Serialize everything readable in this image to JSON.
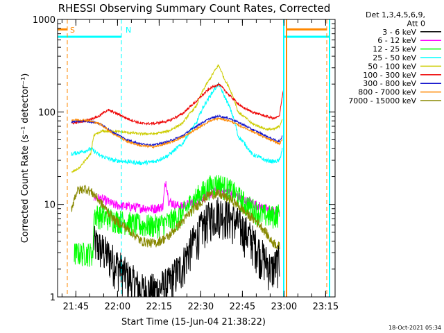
{
  "chart_data": {
    "type": "line",
    "title": "RHESSI Observing Summary Count Rates, Corrected",
    "xlabel": "Start Time (15-Jun-04 21:38:22)",
    "ylabel": "Corrected Count Rate (s⁻¹ detector⁻¹)",
    "yscale": "log",
    "ylim": [
      1,
      1000
    ],
    "xlim_minutes": [
      0,
      100
    ],
    "x_unit": "minutes after 21:38:22",
    "xticks": [
      {
        "minutes": 6.6,
        "label": "21:45"
      },
      {
        "minutes": 21.6,
        "label": "22:00"
      },
      {
        "minutes": 36.6,
        "label": "22:15"
      },
      {
        "minutes": 51.6,
        "label": "22:30"
      },
      {
        "minutes": 66.6,
        "label": "22:45"
      },
      {
        "minutes": 81.6,
        "label": "23:00"
      },
      {
        "minutes": 96.6,
        "label": "23:15"
      }
    ],
    "yticks": [
      {
        "value": 1,
        "label": "1"
      },
      {
        "value": 10,
        "label": "10"
      },
      {
        "value": 100,
        "label": "100"
      },
      {
        "value": 1000,
        "label": "1000"
      }
    ],
    "legend_header": [
      "Det 1,3,4,5,6,9,",
      "Att 0"
    ],
    "legend_position": "right",
    "series": [
      {
        "name": "3 - 6 keV",
        "color": "#000000",
        "start": 13,
        "end": 80,
        "noise": 0.5,
        "x": [
          13,
          15,
          20,
          25,
          30,
          35,
          40,
          45,
          50,
          55,
          58,
          63,
          68,
          73,
          77,
          80
        ],
        "values": [
          4.0,
          3.5,
          2.5,
          1.7,
          1.2,
          1.2,
          1.4,
          2.2,
          4.5,
          7.5,
          8.5,
          7.0,
          5.0,
          3.0,
          2.0,
          2.5
        ]
      },
      {
        "name": "6 - 12 keV",
        "color": "#ff00ff",
        "start": 13,
        "end": 80,
        "noise": 0.12,
        "x": [
          13,
          16,
          20,
          25,
          30,
          35,
          38,
          39,
          40,
          42,
          45,
          50,
          55,
          58,
          63,
          68,
          73,
          77,
          80
        ],
        "values": [
          12,
          11.5,
          10,
          9.5,
          9.2,
          9,
          9.5,
          18,
          11,
          10,
          9.5,
          11,
          13,
          14.5,
          13,
          11,
          9.5,
          8.5,
          8.5
        ]
      },
      {
        "name": "12 - 25 keV",
        "color": "#00ff00",
        "start": 6,
        "end": 80,
        "noise": 0.3,
        "x": [
          6,
          12.9,
          13,
          16,
          20,
          25,
          30,
          35,
          40,
          45,
          50,
          55,
          58,
          63,
          68,
          73,
          77,
          80
        ],
        "values": [
          3.0,
          3.0,
          8,
          7.5,
          7,
          6.5,
          6,
          6,
          6.5,
          8,
          12,
          16,
          17,
          14,
          10,
          8,
          7.5,
          8
        ]
      },
      {
        "name": "25 - 50 keV",
        "color": "#00ffff",
        "start": 5,
        "end": 81,
        "noise": 0.05,
        "x": [
          5,
          10,
          12,
          15,
          20,
          25,
          30,
          35,
          40,
          45,
          50,
          55,
          58,
          60,
          65,
          70,
          75,
          78,
          80,
          81
        ],
        "values": [
          35,
          38,
          40,
          34,
          30,
          29,
          28,
          29,
          34,
          45,
          75,
          150,
          200,
          150,
          55,
          35,
          30,
          29,
          30,
          40
        ]
      },
      {
        "name": "50 - 100 keV",
        "color": "#cccc00",
        "start": 5,
        "end": 81,
        "noise": 0.03,
        "x": [
          5,
          8,
          10,
          12,
          13,
          16,
          20,
          25,
          30,
          35,
          40,
          45,
          50,
          55,
          58,
          60,
          65,
          70,
          75,
          78,
          80,
          81
        ],
        "values": [
          22,
          25,
          30,
          35,
          55,
          62,
          62,
          60,
          58,
          58,
          62,
          75,
          115,
          230,
          320,
          230,
          100,
          75,
          65,
          65,
          70,
          85
        ]
      },
      {
        "name": "100 - 300 keV",
        "color": "#ee0000",
        "start": 5,
        "end": 81.5,
        "noise": 0.03,
        "x": [
          5,
          10,
          15,
          18,
          20,
          25,
          30,
          35,
          40,
          45,
          50,
          55,
          58,
          62,
          66,
          70,
          75,
          78,
          80,
          81,
          81.5
        ],
        "values": [
          75,
          80,
          90,
          105,
          100,
          85,
          75,
          75,
          80,
          95,
          130,
          180,
          200,
          150,
          115,
          100,
          90,
          85,
          90,
          150,
          180
        ]
      },
      {
        "name": "300 - 800 keV",
        "color": "#1111cc",
        "start": 5,
        "end": 81,
        "noise": 0.025,
        "x": [
          5,
          10,
          15,
          20,
          25,
          30,
          35,
          40,
          45,
          50,
          55,
          58,
          62,
          66,
          70,
          75,
          78,
          80,
          81
        ],
        "values": [
          78,
          80,
          75,
          60,
          50,
          45,
          44,
          48,
          55,
          70,
          85,
          90,
          85,
          75,
          65,
          55,
          50,
          48,
          55
        ]
      },
      {
        "name": "800 - 7000 keV",
        "color": "#ff8800",
        "start": 5,
        "end": 81,
        "noise": 0.025,
        "x": [
          5,
          10,
          15,
          20,
          25,
          30,
          35,
          40,
          45,
          50,
          55,
          58,
          62,
          66,
          70,
          75,
          78,
          80,
          81
        ],
        "values": [
          82,
          82,
          75,
          58,
          48,
          43,
          42,
          46,
          53,
          65,
          80,
          85,
          80,
          70,
          62,
          52,
          48,
          45,
          50
        ]
      },
      {
        "name": "7000 - 15000 keV",
        "color": "#888800",
        "start": 5,
        "end": 80,
        "noise": 0.12,
        "x": [
          5,
          7,
          10,
          13,
          16,
          20,
          25,
          30,
          35,
          40,
          45,
          50,
          55,
          58,
          63,
          68,
          73,
          77,
          80
        ],
        "values": [
          9,
          14,
          15,
          13,
          10,
          7,
          5.5,
          4.0,
          3.8,
          4.5,
          6.5,
          9.5,
          13,
          13,
          11,
          8,
          6,
          4,
          3.5
        ]
      }
    ],
    "annotations": [
      {
        "label": "S",
        "color": "#ff8800",
        "minutes": 3.5
      },
      {
        "label": "N",
        "color": "#00ffff",
        "minutes": 23.5
      }
    ],
    "vlines": [
      {
        "minutes": 3.5,
        "color": "#ff8800",
        "style": "dashed"
      },
      {
        "minutes": 23.0,
        "color": "#00ffff",
        "style": "dashed"
      },
      {
        "minutes": 81.5,
        "color": "#00ffff",
        "style": "solid"
      },
      {
        "minutes": 82.5,
        "color": "#ff8800",
        "style": "solid"
      },
      {
        "minutes": 97.0,
        "color": "#ff8800",
        "style": "dashed"
      },
      {
        "minutes": 98.0,
        "color": "#00ffff",
        "style": "solid"
      }
    ],
    "hsegments": [
      {
        "color": "#ff8800",
        "x": [
          0,
          3.5
        ],
        "value": 780
      },
      {
        "color": "#00ffff",
        "x": [
          0,
          23.0
        ],
        "value": 650
      },
      {
        "color": "#ff8800",
        "x": [
          82.5,
          97.0
        ],
        "value": 780
      },
      {
        "color": "#00ffff",
        "x": [
          81.5,
          98.0
        ],
        "value": 650
      }
    ],
    "footer": "18-Oct-2021 05:34"
  }
}
